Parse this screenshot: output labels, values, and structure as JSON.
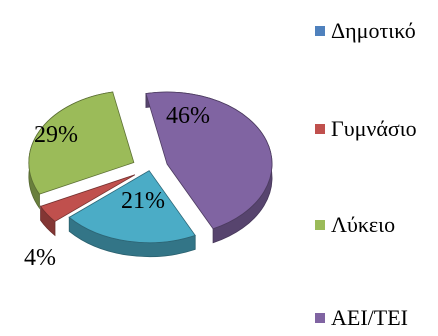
{
  "chart_data": {
    "type": "pie",
    "style": "3d-exploded",
    "categories": [
      "Δημοτικό",
      "Γυμνάσιο",
      "Λύκειο",
      "ΑΕΙ/ΤΕΙ"
    ],
    "values": [
      21,
      4,
      29,
      46
    ],
    "value_labels": [
      "21%",
      "4%",
      "29%",
      "46%"
    ],
    "colors": [
      "#4bacc6",
      "#c0504d",
      "#9bbb59",
      "#8064a2"
    ],
    "legend_colors": [
      "#4f81bd",
      "#c0504d",
      "#9bbb59",
      "#8064a2"
    ],
    "legend_position": "right",
    "title": ""
  }
}
